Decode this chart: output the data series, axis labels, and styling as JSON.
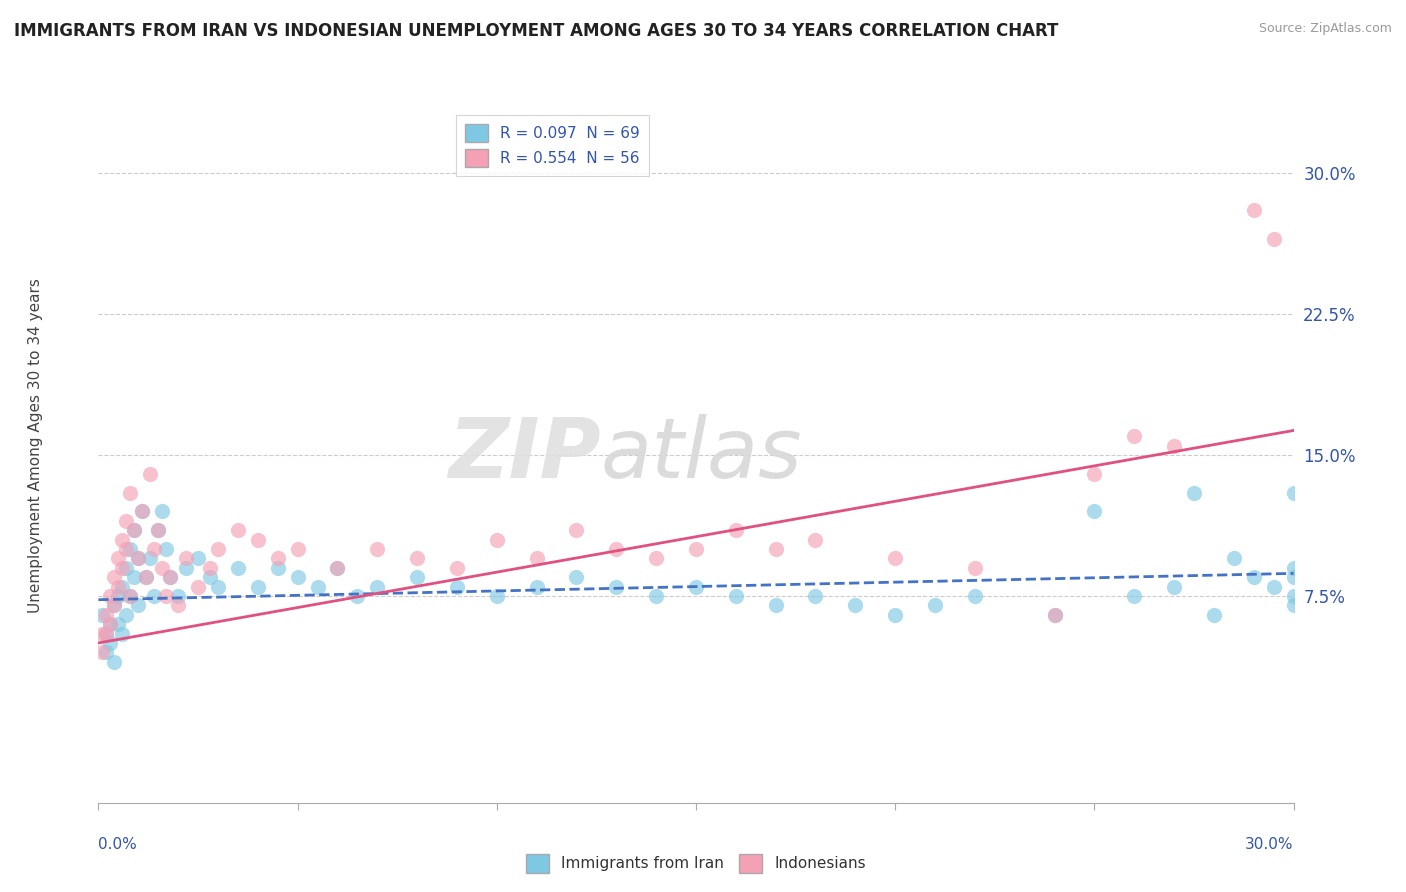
{
  "title": "IMMIGRANTS FROM IRAN VS INDONESIAN UNEMPLOYMENT AMONG AGES 30 TO 34 YEARS CORRELATION CHART",
  "source": "Source: ZipAtlas.com",
  "ylabel": "Unemployment Among Ages 30 to 34 years",
  "legend_bottom": [
    "Immigrants from Iran",
    "Indonesians"
  ],
  "legend_top_labels": [
    "R = 0.097  N = 69",
    "R = 0.554  N = 56"
  ],
  "ytick_vals": [
    0.075,
    0.15,
    0.225,
    0.3
  ],
  "ytick_labels": [
    "7.5%",
    "15.0%",
    "22.5%",
    "30.0%"
  ],
  "xrange": [
    0.0,
    0.3
  ],
  "yrange": [
    -0.035,
    0.335
  ],
  "iran_color": "#7ec8e3",
  "indonesia_color": "#f4a0b5",
  "iran_reg_color": "#4472c4",
  "indonesia_reg_color": "#e05080",
  "iran_scatter": [
    [
      0.001,
      0.065
    ],
    [
      0.002,
      0.055
    ],
    [
      0.002,
      0.045
    ],
    [
      0.003,
      0.06
    ],
    [
      0.003,
      0.05
    ],
    [
      0.004,
      0.04
    ],
    [
      0.004,
      0.07
    ],
    [
      0.005,
      0.075
    ],
    [
      0.005,
      0.06
    ],
    [
      0.006,
      0.08
    ],
    [
      0.006,
      0.055
    ],
    [
      0.007,
      0.09
    ],
    [
      0.007,
      0.065
    ],
    [
      0.008,
      0.1
    ],
    [
      0.008,
      0.075
    ],
    [
      0.009,
      0.11
    ],
    [
      0.009,
      0.085
    ],
    [
      0.01,
      0.095
    ],
    [
      0.01,
      0.07
    ],
    [
      0.011,
      0.12
    ],
    [
      0.012,
      0.085
    ],
    [
      0.013,
      0.095
    ],
    [
      0.014,
      0.075
    ],
    [
      0.015,
      0.11
    ],
    [
      0.016,
      0.12
    ],
    [
      0.017,
      0.1
    ],
    [
      0.018,
      0.085
    ],
    [
      0.02,
      0.075
    ],
    [
      0.022,
      0.09
    ],
    [
      0.025,
      0.095
    ],
    [
      0.028,
      0.085
    ],
    [
      0.03,
      0.08
    ],
    [
      0.035,
      0.09
    ],
    [
      0.04,
      0.08
    ],
    [
      0.045,
      0.09
    ],
    [
      0.05,
      0.085
    ],
    [
      0.055,
      0.08
    ],
    [
      0.06,
      0.09
    ],
    [
      0.065,
      0.075
    ],
    [
      0.07,
      0.08
    ],
    [
      0.08,
      0.085
    ],
    [
      0.09,
      0.08
    ],
    [
      0.1,
      0.075
    ],
    [
      0.11,
      0.08
    ],
    [
      0.12,
      0.085
    ],
    [
      0.13,
      0.08
    ],
    [
      0.14,
      0.075
    ],
    [
      0.15,
      0.08
    ],
    [
      0.16,
      0.075
    ],
    [
      0.17,
      0.07
    ],
    [
      0.18,
      0.075
    ],
    [
      0.19,
      0.07
    ],
    [
      0.2,
      0.065
    ],
    [
      0.21,
      0.07
    ],
    [
      0.22,
      0.075
    ],
    [
      0.24,
      0.065
    ],
    [
      0.25,
      0.12
    ],
    [
      0.26,
      0.075
    ],
    [
      0.27,
      0.08
    ],
    [
      0.275,
      0.13
    ],
    [
      0.28,
      0.065
    ],
    [
      0.285,
      0.095
    ],
    [
      0.29,
      0.085
    ],
    [
      0.295,
      0.08
    ],
    [
      0.3,
      0.09
    ],
    [
      0.3,
      0.075
    ],
    [
      0.3,
      0.085
    ],
    [
      0.3,
      0.13
    ],
    [
      0.3,
      0.07
    ]
  ],
  "indonesia_scatter": [
    [
      0.001,
      0.055
    ],
    [
      0.001,
      0.045
    ],
    [
      0.002,
      0.065
    ],
    [
      0.002,
      0.055
    ],
    [
      0.003,
      0.075
    ],
    [
      0.003,
      0.06
    ],
    [
      0.004,
      0.085
    ],
    [
      0.004,
      0.07
    ],
    [
      0.005,
      0.095
    ],
    [
      0.005,
      0.08
    ],
    [
      0.006,
      0.105
    ],
    [
      0.006,
      0.09
    ],
    [
      0.007,
      0.115
    ],
    [
      0.007,
      0.1
    ],
    [
      0.008,
      0.13
    ],
    [
      0.008,
      0.075
    ],
    [
      0.009,
      0.11
    ],
    [
      0.01,
      0.095
    ],
    [
      0.011,
      0.12
    ],
    [
      0.012,
      0.085
    ],
    [
      0.013,
      0.14
    ],
    [
      0.014,
      0.1
    ],
    [
      0.015,
      0.11
    ],
    [
      0.016,
      0.09
    ],
    [
      0.017,
      0.075
    ],
    [
      0.018,
      0.085
    ],
    [
      0.02,
      0.07
    ],
    [
      0.022,
      0.095
    ],
    [
      0.025,
      0.08
    ],
    [
      0.028,
      0.09
    ],
    [
      0.03,
      0.1
    ],
    [
      0.035,
      0.11
    ],
    [
      0.04,
      0.105
    ],
    [
      0.045,
      0.095
    ],
    [
      0.05,
      0.1
    ],
    [
      0.06,
      0.09
    ],
    [
      0.07,
      0.1
    ],
    [
      0.08,
      0.095
    ],
    [
      0.09,
      0.09
    ],
    [
      0.1,
      0.105
    ],
    [
      0.11,
      0.095
    ],
    [
      0.12,
      0.11
    ],
    [
      0.13,
      0.1
    ],
    [
      0.14,
      0.095
    ],
    [
      0.15,
      0.1
    ],
    [
      0.16,
      0.11
    ],
    [
      0.17,
      0.1
    ],
    [
      0.18,
      0.105
    ],
    [
      0.2,
      0.095
    ],
    [
      0.22,
      0.09
    ],
    [
      0.24,
      0.065
    ],
    [
      0.25,
      0.14
    ],
    [
      0.26,
      0.16
    ],
    [
      0.27,
      0.155
    ],
    [
      0.29,
      0.28
    ],
    [
      0.295,
      0.265
    ]
  ],
  "iran_regression": [
    0.0,
    0.073,
    0.3,
    0.087
  ],
  "indonesia_regression": [
    0.0,
    0.05,
    0.3,
    0.163
  ],
  "watermark_zip": "ZIP",
  "watermark_atlas": "atlas",
  "background_color": "#ffffff",
  "grid_color": "#cccccc",
  "scatter_alpha": 0.65,
  "scatter_size": 120
}
